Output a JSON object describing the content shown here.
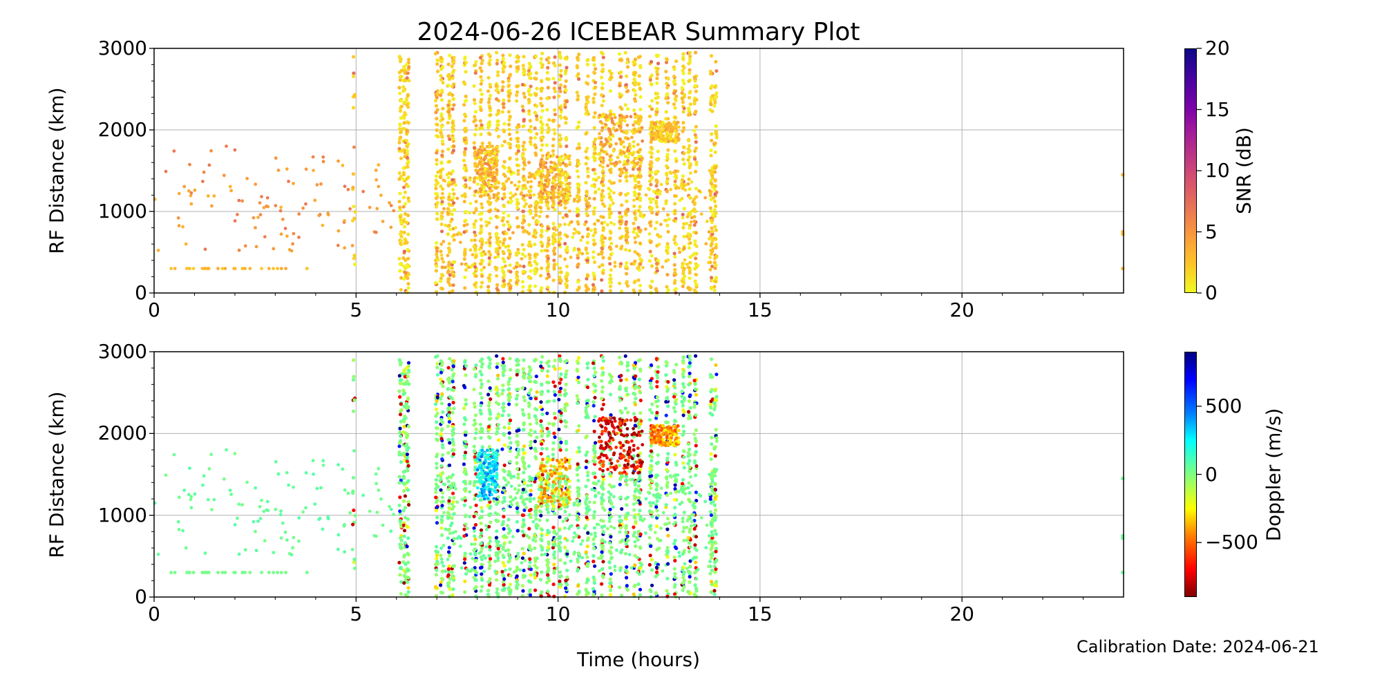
{
  "title": "2024-06-26 ICEBEAR Summary Plot",
  "calibration_text": "Calibration Date: 2024-06-21",
  "chart_data": [
    {
      "type": "scatter",
      "panel": "top",
      "xlabel": "",
      "ylabel": "RF Distance (km)",
      "xlim": [
        0,
        24
      ],
      "ylim": [
        0,
        3000
      ],
      "xticks": [
        "0",
        "5",
        "10",
        "15",
        "20"
      ],
      "yticks": [
        "0",
        "1000",
        "2000",
        "3000"
      ],
      "grid": true,
      "color_variable": "SNR",
      "colorbar": {
        "label": "SNR (dB)",
        "range": [
          0,
          20
        ],
        "ticks": [
          "0",
          "5",
          "10",
          "15",
          "20"
        ],
        "colormap": "plasma_r"
      },
      "stripe_times_hours": [
        4.95,
        6.1,
        6.2,
        6.28,
        7.0,
        7.12,
        7.3,
        7.4,
        7.7,
        7.95,
        8.1,
        8.3,
        8.5,
        8.65,
        8.8,
        9.0,
        9.15,
        9.3,
        9.45,
        9.6,
        9.75,
        9.9,
        10.05,
        10.2,
        10.5,
        10.72,
        10.9,
        11.1,
        11.3,
        11.55,
        11.7,
        11.9,
        12.02,
        12.3,
        12.45,
        12.7,
        12.9,
        13.1,
        13.25,
        13.4,
        13.8,
        13.9
      ],
      "clusters": [
        {
          "t": [
            8.0,
            8.5
          ],
          "range_km": [
            1200,
            1800
          ],
          "snr_db": 4,
          "doppler_ms": 300
        },
        {
          "t": [
            9.5,
            10.3
          ],
          "range_km": [
            1100,
            1700
          ],
          "snr_db": 4,
          "doppler_ms": -300
        },
        {
          "t": [
            11.0,
            12.1
          ],
          "range_km": [
            1500,
            2200
          ],
          "snr_db": 4,
          "doppler_ms": -700
        },
        {
          "t": [
            12.3,
            13.0
          ],
          "range_km": [
            1850,
            2100
          ],
          "snr_db": 3,
          "doppler_ms": -400
        }
      ],
      "sparse_region": {
        "t": [
          0,
          6.0
        ],
        "range_km": [
          500,
          1800
        ],
        "snr_db": 3,
        "doppler_ms": 50
      },
      "line_300km": {
        "t": [
          0.2,
          3.9
        ],
        "range_km": 300
      },
      "isolated_points": [
        [
          24,
          1450
        ],
        [
          24,
          750
        ],
        [
          24,
          720
        ],
        [
          24,
          300
        ]
      ]
    },
    {
      "type": "scatter",
      "panel": "bottom",
      "xlabel": "Time (hours)",
      "ylabel": "RF Distance (km)",
      "xlim": [
        0,
        24
      ],
      "ylim": [
        0,
        3000
      ],
      "xticks": [
        "0",
        "5",
        "10",
        "15",
        "20"
      ],
      "yticks": [
        "0",
        "1000",
        "2000",
        "3000"
      ],
      "grid": true,
      "color_variable": "Doppler",
      "colorbar": {
        "label": "Doppler (m/s)",
        "range": [
          -900,
          900
        ],
        "ticks": [
          "−500",
          "0",
          "500"
        ],
        "tick_values": [
          -500,
          0,
          500
        ],
        "colormap": "jet"
      }
    }
  ]
}
